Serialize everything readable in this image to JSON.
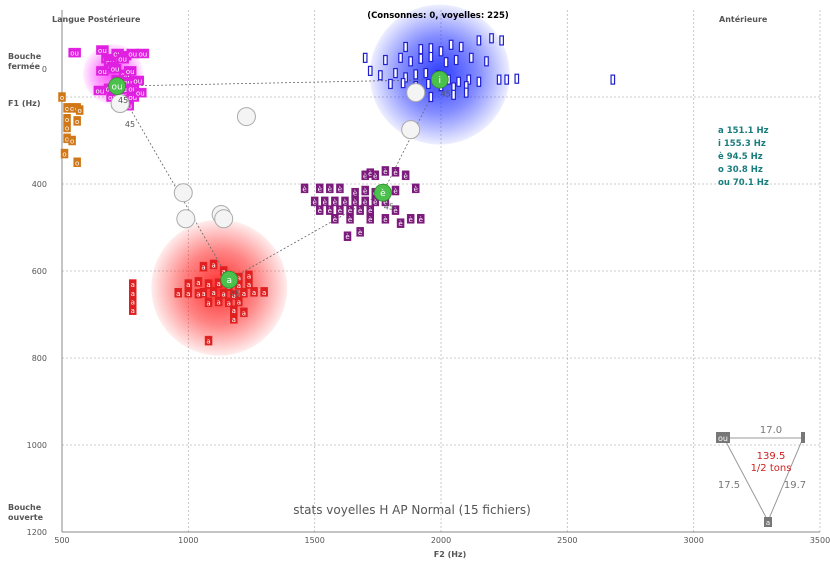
{
  "chart_data": {
    "type": "scatter",
    "title": "(Consonnes:  0, voyelles: 225)",
    "subtitle": "stats voyelles H AP Normal (15 fichiers)",
    "xlabel": "F2 (Hz)",
    "ylabel": "F1 (Hz)",
    "xlim": [
      500,
      3500
    ],
    "ylim": [
      1200,
      0
    ],
    "x_ticks": [
      500,
      1000,
      1500,
      2000,
      2500,
      3000,
      3500
    ],
    "y_ticks": [
      400,
      600,
      800,
      1000,
      1200
    ],
    "grid": true,
    "corner_labels": {
      "top_left": "Langue Postérieure",
      "top_right": "Antérieure",
      "left_top": [
        "Bouche",
        "fermée"
      ],
      "left_bottom": [
        "Bouche",
        "ouverte"
      ]
    },
    "series": [
      {
        "name": "ou",
        "color": "#e020e0",
        "centroid": [
          718,
          175
        ],
        "points": [
          [
            550,
            98
          ],
          [
            660,
            92
          ],
          [
            680,
            112
          ],
          [
            720,
            100
          ],
          [
            750,
            105
          ],
          [
            690,
            120
          ],
          [
            740,
            112
          ],
          [
            780,
            100
          ],
          [
            820,
            100
          ],
          [
            700,
            130
          ],
          [
            660,
            140
          ],
          [
            710,
            135
          ],
          [
            750,
            148
          ],
          [
            770,
            140
          ],
          [
            720,
            160
          ],
          [
            760,
            165
          ],
          [
            800,
            162
          ],
          [
            740,
            182
          ],
          [
            780,
            180
          ],
          [
            690,
            180
          ],
          [
            650,
            185
          ],
          [
            700,
            200
          ],
          [
            740,
            205
          ],
          [
            780,
            200
          ],
          [
            810,
            190
          ],
          [
            760,
            220
          ],
          [
            720,
            215
          ]
        ]
      },
      {
        "name": "o",
        "color": "#d07818",
        "centroid": [
          570,
          240
        ],
        "points": [
          [
            500,
            200
          ],
          [
            520,
            225
          ],
          [
            540,
            225
          ],
          [
            560,
            225
          ],
          [
            570,
            230
          ],
          [
            520,
            250
          ],
          [
            560,
            255
          ],
          [
            520,
            270
          ],
          [
            520,
            295
          ],
          [
            510,
            330
          ],
          [
            540,
            300
          ],
          [
            560,
            350
          ]
        ]
      },
      {
        "name": "i",
        "color": "#2020d0",
        "centroid": [
          1995,
          160
        ],
        "points": [
          [
            1860,
            85
          ],
          [
            1920,
            90
          ],
          [
            1960,
            88
          ],
          [
            2000,
            95
          ],
          [
            2040,
            80
          ],
          [
            2080,
            85
          ],
          [
            2150,
            70
          ],
          [
            2200,
            65
          ],
          [
            2240,
            70
          ],
          [
            1700,
            110
          ],
          [
            1780,
            115
          ],
          [
            1840,
            110
          ],
          [
            1880,
            118
          ],
          [
            1920,
            112
          ],
          [
            1960,
            108
          ],
          [
            2020,
            120
          ],
          [
            2060,
            115
          ],
          [
            2120,
            110
          ],
          [
            2180,
            118
          ],
          [
            1720,
            140
          ],
          [
            1760,
            150
          ],
          [
            1820,
            145
          ],
          [
            1860,
            155
          ],
          [
            1900,
            148
          ],
          [
            1940,
            145
          ],
          [
            1990,
            150
          ],
          [
            2030,
            160
          ],
          [
            2070,
            165
          ],
          [
            2110,
            160
          ],
          [
            2150,
            165
          ],
          [
            2230,
            160
          ],
          [
            2260,
            160
          ],
          [
            2300,
            158
          ],
          [
            1800,
            170
          ],
          [
            1850,
            168
          ],
          [
            1900,
            175
          ],
          [
            1950,
            170
          ],
          [
            2000,
            175
          ],
          [
            2050,
            178
          ],
          [
            2100,
            175
          ],
          [
            1880,
            190
          ],
          [
            1960,
            200
          ],
          [
            2050,
            195
          ],
          [
            2100,
            190
          ],
          [
            2680,
            160
          ]
        ]
      },
      {
        "name": "è",
        "color": "#7b1a7b",
        "centroid": [
          1770,
          420
        ],
        "points": [
          [
            1700,
            380
          ],
          [
            1720,
            375
          ],
          [
            1740,
            380
          ],
          [
            1780,
            370
          ],
          [
            1820,
            372
          ],
          [
            1860,
            380
          ],
          [
            1460,
            410
          ],
          [
            1520,
            410
          ],
          [
            1560,
            410
          ],
          [
            1600,
            410
          ],
          [
            1660,
            420
          ],
          [
            1700,
            415
          ],
          [
            1740,
            420
          ],
          [
            1780,
            418
          ],
          [
            1820,
            415
          ],
          [
            1900,
            410
          ],
          [
            1500,
            440
          ],
          [
            1540,
            440
          ],
          [
            1580,
            440
          ],
          [
            1620,
            440
          ],
          [
            1660,
            440
          ],
          [
            1700,
            440
          ],
          [
            1740,
            440
          ],
          [
            1780,
            440
          ],
          [
            1520,
            460
          ],
          [
            1560,
            460
          ],
          [
            1600,
            460
          ],
          [
            1640,
            460
          ],
          [
            1680,
            460
          ],
          [
            1720,
            460
          ],
          [
            1820,
            460
          ],
          [
            1580,
            480
          ],
          [
            1640,
            480
          ],
          [
            1720,
            480
          ],
          [
            1780,
            480
          ],
          [
            1840,
            490
          ],
          [
            1880,
            480
          ],
          [
            1920,
            480
          ],
          [
            1630,
            520
          ],
          [
            1680,
            510
          ]
        ]
      },
      {
        "name": "a",
        "color": "#e02020",
        "centroid": [
          1162,
          620
        ],
        "points": [
          [
            1060,
            590
          ],
          [
            1100,
            585
          ],
          [
            1140,
            600
          ],
          [
            1200,
            615
          ],
          [
            1240,
            610
          ],
          [
            1000,
            630
          ],
          [
            1040,
            625
          ],
          [
            1080,
            630
          ],
          [
            1120,
            628
          ],
          [
            1160,
            635
          ],
          [
            1200,
            632
          ],
          [
            1240,
            630
          ],
          [
            780,
            630
          ],
          [
            1060,
            650
          ],
          [
            1100,
            648
          ],
          [
            1140,
            652
          ],
          [
            1180,
            655
          ],
          [
            1220,
            650
          ],
          [
            1260,
            648
          ],
          [
            1300,
            648
          ],
          [
            780,
            650
          ],
          [
            960,
            650
          ],
          [
            1000,
            650
          ],
          [
            1040,
            652
          ],
          [
            1080,
            672
          ],
          [
            1120,
            670
          ],
          [
            1160,
            672
          ],
          [
            1200,
            670
          ],
          [
            780,
            670
          ],
          [
            1180,
            690
          ],
          [
            1220,
            695
          ],
          [
            780,
            690
          ],
          [
            1180,
            710
          ],
          [
            1080,
            760
          ]
        ]
      }
    ],
    "white_markers": [
      [
        730,
        215
      ],
      [
        1230,
        245
      ],
      [
        980,
        420
      ],
      [
        990,
        480
      ],
      [
        1130,
        470
      ],
      [
        1140,
        480
      ],
      [
        1900,
        190
      ],
      [
        1880,
        275
      ]
    ],
    "value_tag": "45",
    "stats_text": [
      "a 151.1 Hz",
      "i 155.3 Hz",
      "è 94.5 Hz",
      "o 30.8 Hz",
      "ou 70.1 Hz"
    ],
    "triangle": {
      "corner_labels": [
        "ou",
        "i",
        "a"
      ],
      "top_value": "17.0",
      "left_value": "17.5",
      "right_value": "19.7",
      "center_value": "139.5",
      "center_unit": "1/2 tons"
    }
  }
}
